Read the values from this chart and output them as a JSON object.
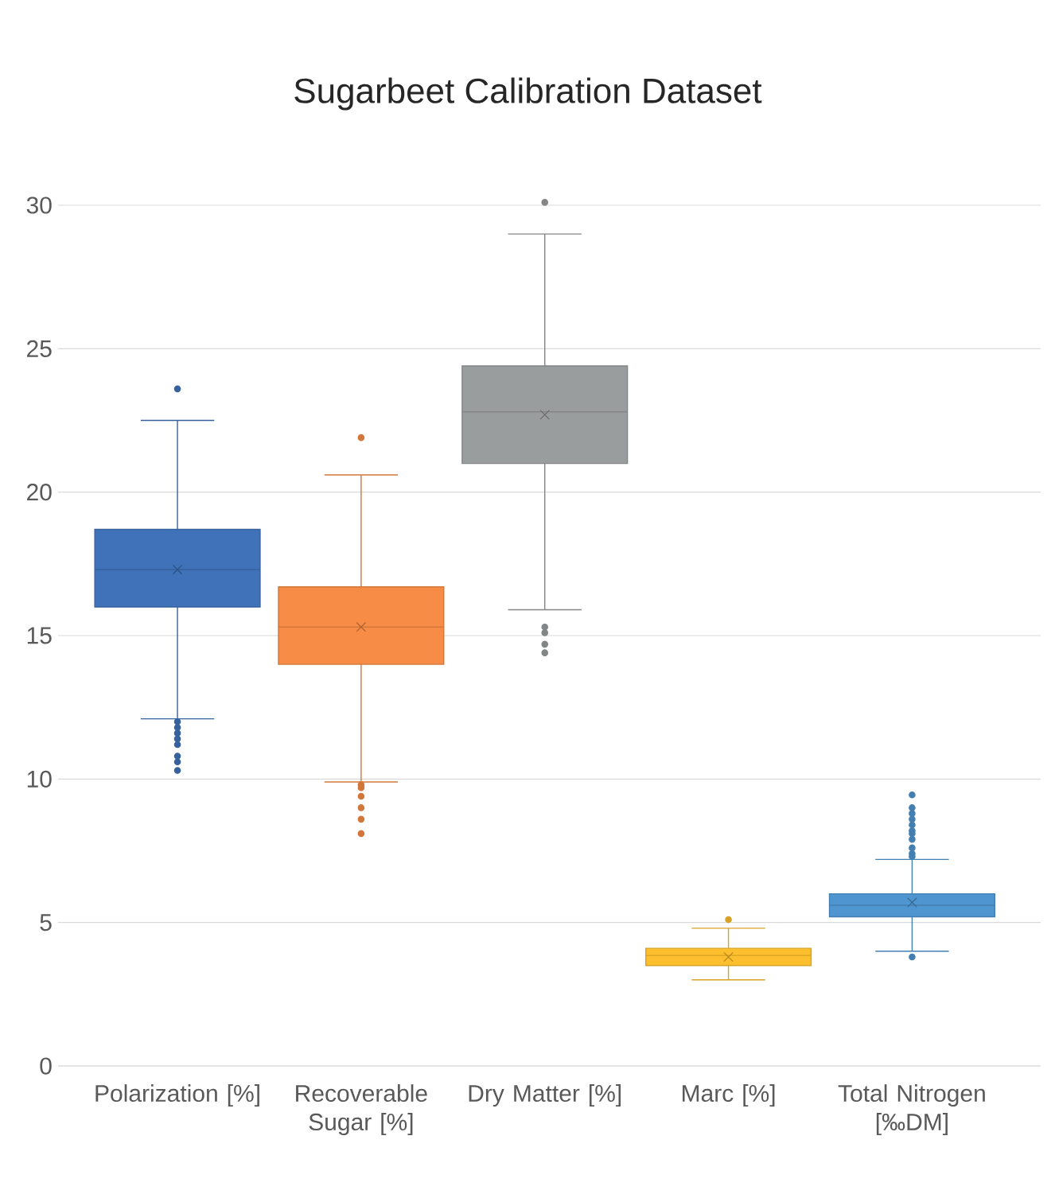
{
  "chart_data": {
    "type": "box",
    "title": "Sugarbeet Calibration Dataset",
    "categories": [
      "Polarization [%]",
      "Recoverable Sugar [%]",
      "Dry Matter [%]",
      "Marc [%]",
      "Total Nitrogen [‰DM]"
    ],
    "colors": [
      "#3f72b8",
      "#f68c45",
      "#9a9d9e",
      "#fdbf2d",
      "#4f95d0"
    ],
    "boxes": [
      {
        "low": 12.1,
        "q1": 16.0,
        "median": 17.3,
        "q3": 18.7,
        "high": 22.5,
        "mean": 17.3,
        "outliers": [
          23.6,
          12.0,
          11.8,
          11.6,
          11.4,
          11.2,
          10.8,
          10.6,
          10.3
        ]
      },
      {
        "low": 9.9,
        "q1": 14.0,
        "median": 15.3,
        "q3": 16.7,
        "high": 20.6,
        "mean": 15.3,
        "outliers": [
          21.9,
          9.8,
          9.7,
          9.4,
          9.0,
          8.6,
          8.1
        ]
      },
      {
        "low": 15.9,
        "q1": 21.0,
        "median": 22.8,
        "q3": 24.4,
        "high": 29.0,
        "mean": 22.7,
        "outliers": [
          30.1,
          15.3,
          15.1,
          14.7,
          14.4
        ]
      },
      {
        "low": 3.0,
        "q1": 3.5,
        "median": 3.85,
        "q3": 4.1,
        "high": 4.8,
        "mean": 3.8,
        "outliers": [
          5.1
        ]
      },
      {
        "low": 4.0,
        "q1": 5.2,
        "median": 5.6,
        "q3": 6.0,
        "high": 7.2,
        "mean": 5.7,
        "outliers": [
          9.45,
          9.0,
          8.8,
          8.6,
          8.4,
          8.2,
          8.1,
          7.9,
          7.6,
          7.4,
          7.3,
          3.8
        ]
      }
    ],
    "ylim": [
      0,
      30
    ],
    "yticks": [
      0,
      5,
      10,
      15,
      20,
      25,
      30
    ],
    "grid": "y"
  }
}
